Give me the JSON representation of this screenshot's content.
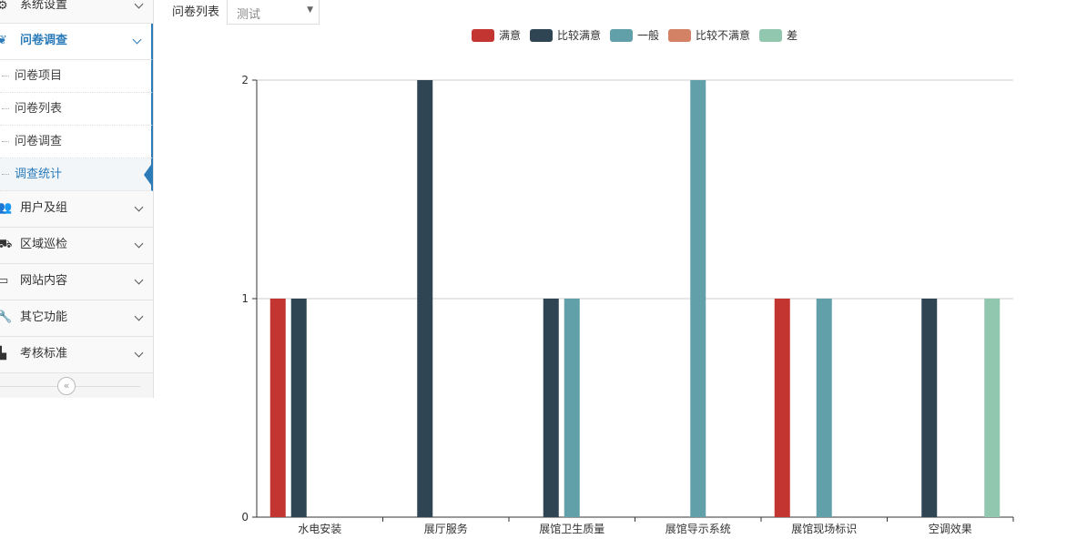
{
  "sidebar": {
    "items": [
      {
        "label": "系统设置",
        "icon": "gear-icon"
      },
      {
        "label": "问卷调查",
        "icon": "paw-icon"
      },
      {
        "label": "用户及组",
        "icon": "users-icon"
      },
      {
        "label": "区域巡检",
        "icon": "truck-icon"
      },
      {
        "label": "网站内容",
        "icon": "monitor-icon"
      },
      {
        "label": "其它功能",
        "icon": "wrench-icon"
      },
      {
        "label": "考核标准",
        "icon": "bar-chart-icon"
      }
    ],
    "sub_items": [
      "问卷项目",
      "问卷列表",
      "问卷调查",
      "调查统计"
    ],
    "active_sub": "调查统计",
    "collapse_glyph": "«"
  },
  "filter": {
    "label": "问卷列表",
    "selected": "测试"
  },
  "chart_data": {
    "type": "bar",
    "categories": [
      "水电安装",
      "展厅服务",
      "展馆卫生质量",
      "展馆导示系统",
      "展馆现场标识",
      "空调效果"
    ],
    "series": [
      {
        "name": "满意",
        "color": "#c23531",
        "values": [
          1,
          0,
          0,
          0,
          1,
          0
        ]
      },
      {
        "name": "比较满意",
        "color": "#2f4554",
        "values": [
          1,
          2,
          1,
          0,
          0,
          1
        ]
      },
      {
        "name": "一般",
        "color": "#61a0a8",
        "values": [
          0,
          0,
          1,
          2,
          1,
          0
        ]
      },
      {
        "name": "比较不满意",
        "color": "#d48265",
        "values": [
          0,
          0,
          0,
          0,
          0,
          0
        ]
      },
      {
        "name": "差",
        "color": "#91c7ae",
        "values": [
          0,
          0,
          0,
          0,
          0,
          1
        ]
      }
    ],
    "ylim": [
      0,
      2
    ],
    "yticks": [
      0,
      1,
      2
    ],
    "legend_position": "top-center",
    "grid": true
  }
}
